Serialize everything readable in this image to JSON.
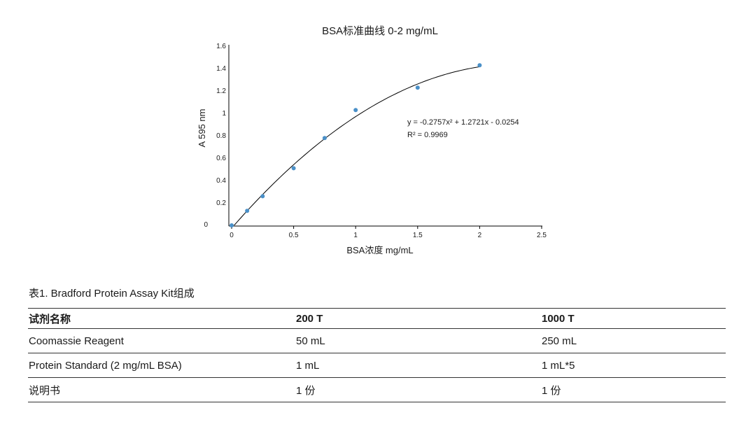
{
  "chart_data": {
    "type": "scatter",
    "title": "BSA标准曲线 0-2 mg/mL",
    "xlabel": "BSA浓度 mg/mL",
    "ylabel": "A 595 nm",
    "xlim": [
      0,
      2.5
    ],
    "ylim": [
      0,
      1.6
    ],
    "x_ticks": [
      "0",
      "0.5",
      "1",
      "1.5",
      "2",
      "2.5"
    ],
    "y_ticks": [
      "0",
      "0.2",
      "0.4",
      "0.6",
      "0.8",
      "1",
      "1.2",
      "1.4",
      "1.6"
    ],
    "series": [
      {
        "x": [
          0,
          0.125,
          0.25,
          0.5,
          0.75,
          1,
          1.5,
          2
        ],
        "y": [
          0.0,
          0.13,
          0.26,
          0.51,
          0.78,
          1.03,
          1.23,
          1.43
        ],
        "color": "#4a90c8"
      }
    ],
    "trendline": {
      "type": "polynomial",
      "order": 2,
      "coefficients": [
        -0.2757,
        1.2721,
        -0.0254
      ],
      "color": "#000000"
    },
    "equation": "y = -0.2757x² + 1.2721x - 0.0254",
    "r_squared": "R² = 0.9969",
    "grid": false
  },
  "caption": "表1. Bradford Protein Assay Kit组成",
  "table": {
    "headers": [
      "试剂名称",
      "200 T",
      "1000 T"
    ],
    "rows": [
      [
        "Coomassie Reagent",
        "50 mL",
        "250 mL"
      ],
      [
        "Protein Standard (2 mg/mL BSA)",
        "1 mL",
        "1 mL*5"
      ],
      [
        "说明书",
        "1 份",
        "1 份"
      ]
    ]
  }
}
